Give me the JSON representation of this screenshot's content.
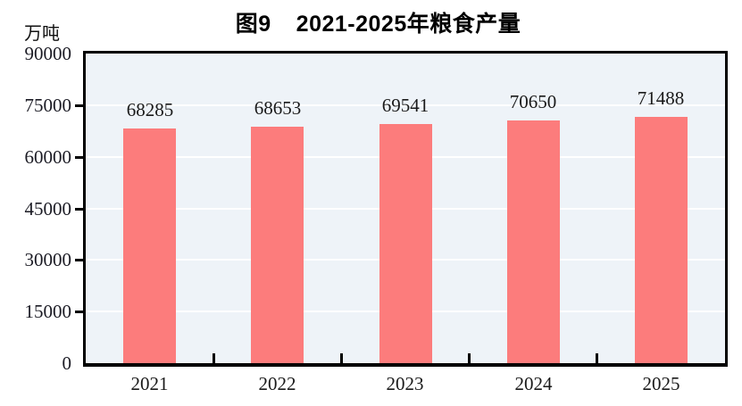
{
  "chart": {
    "title_prefix": "图9",
    "title_text": "2021-2025年粮食产量",
    "unit_label": "万吨"
  },
  "chart_data": {
    "type": "bar",
    "title": "图9 2021-2025年粮食产量",
    "ylabel_unit": "万吨",
    "xlabel": "",
    "categories": [
      "2021",
      "2022",
      "2023",
      "2024",
      "2025"
    ],
    "values": [
      68285,
      68653,
      69541,
      70650,
      71488
    ],
    "value_labels": [
      "68285",
      "68653",
      "69541",
      "70650",
      "71488"
    ],
    "ylim": [
      0,
      90000
    ],
    "yticks": [
      0,
      15000,
      30000,
      45000,
      60000,
      75000,
      90000
    ],
    "grid": true,
    "legend": "none",
    "colors": {
      "bar": "#FC7C7C",
      "plot_background": "#EEF3F8",
      "gridline": "#FFFFFF",
      "axis": "#000000",
      "text": "#1A1A1A"
    }
  }
}
